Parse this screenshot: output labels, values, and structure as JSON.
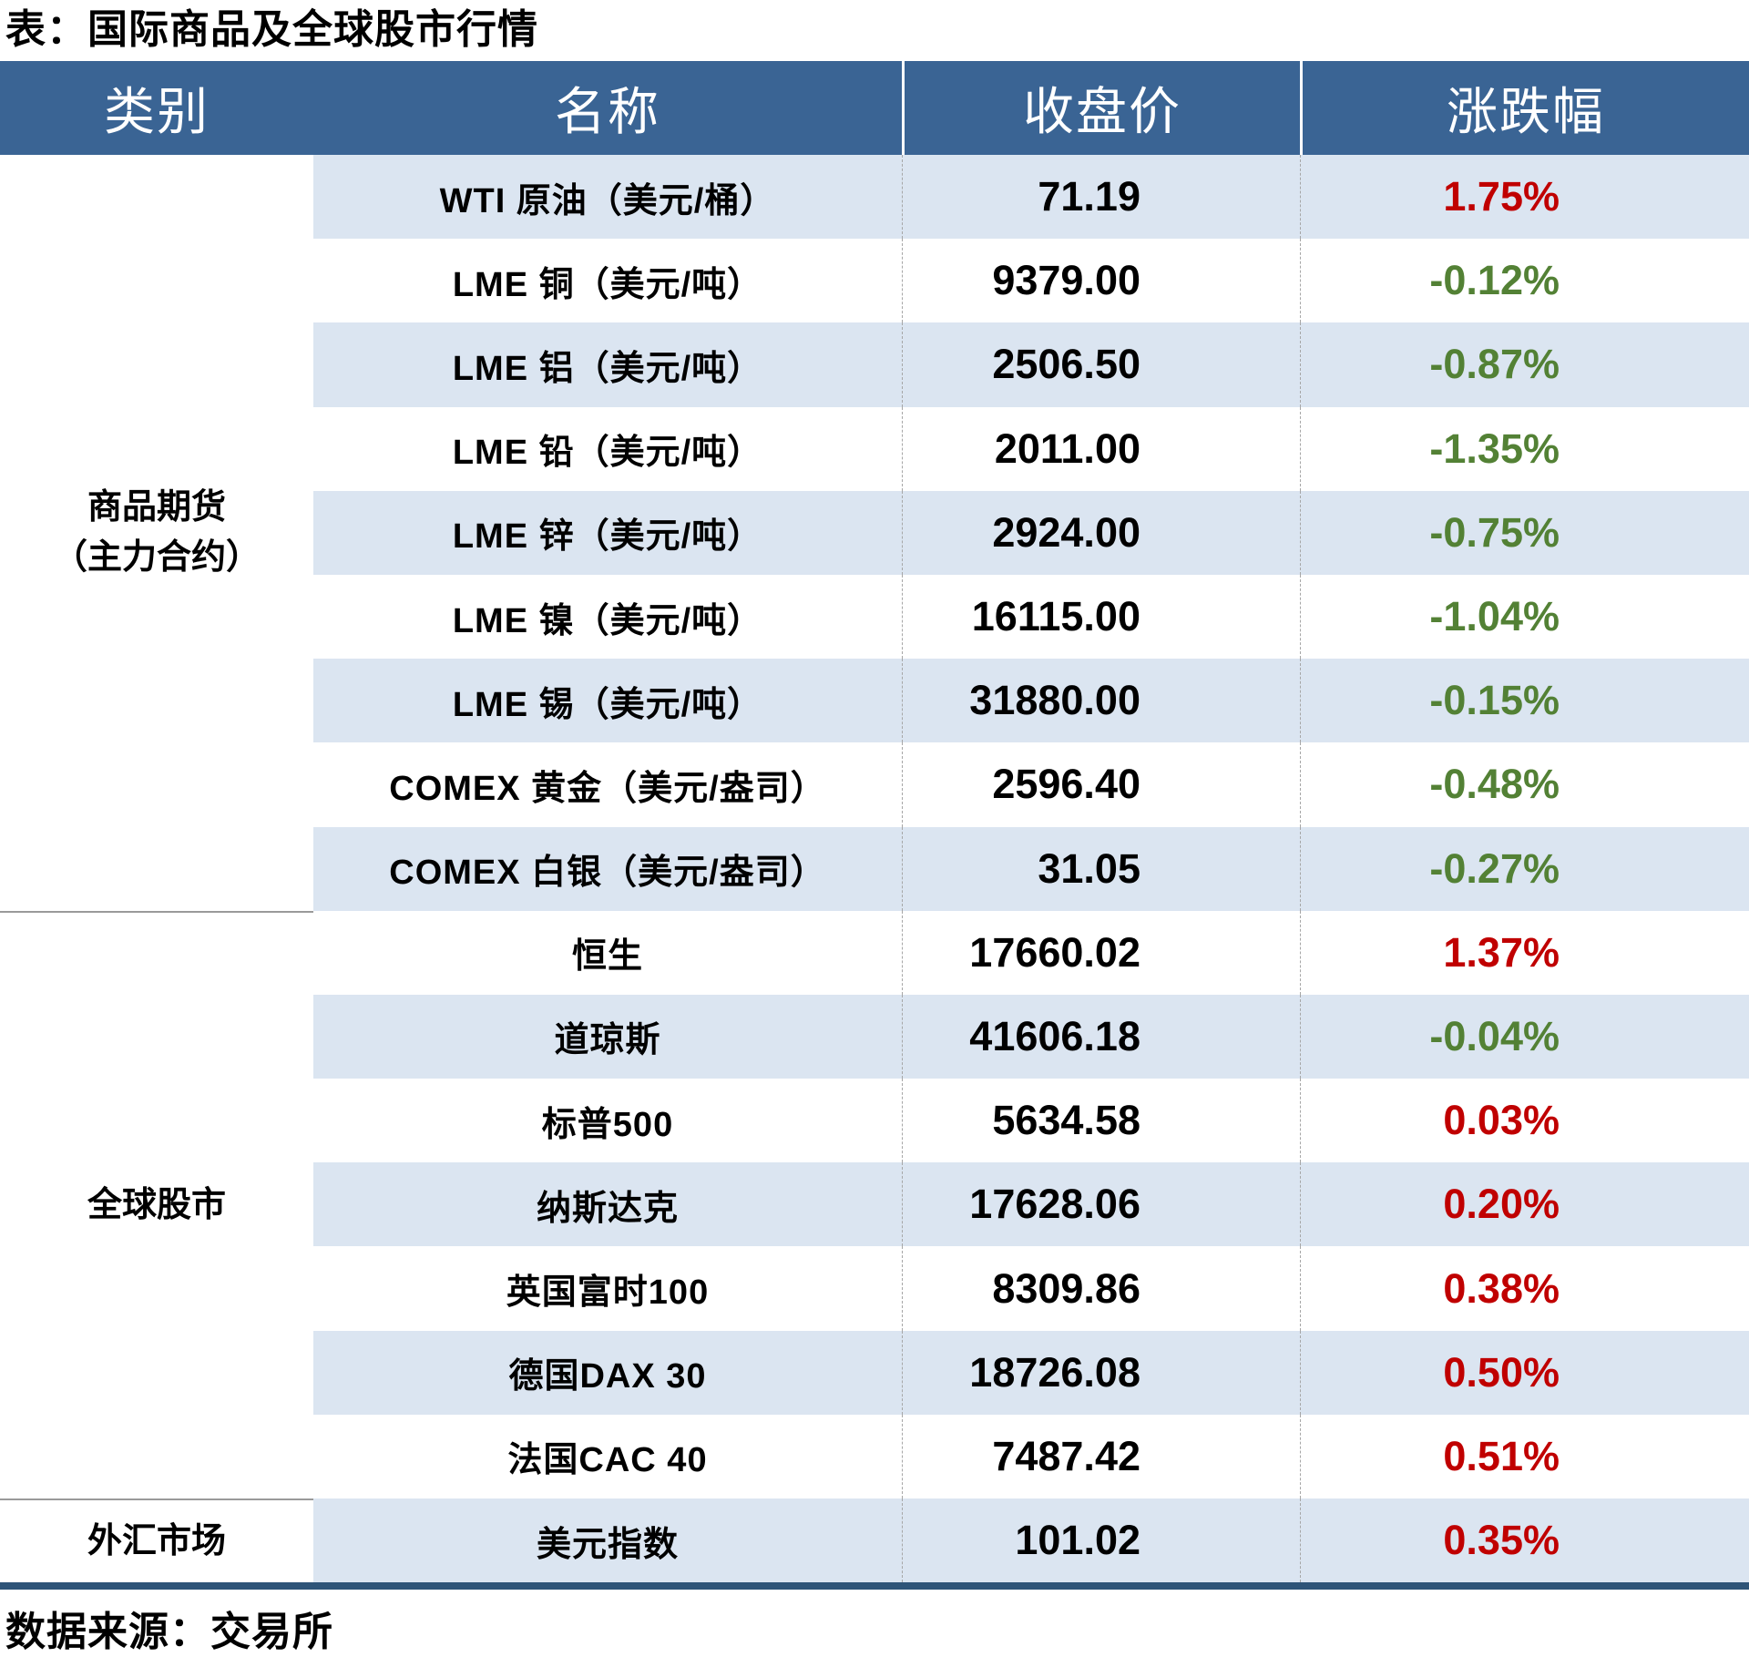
{
  "title": "表：国际商品及全球股市行情",
  "footer": {
    "source": "数据来源：交易所"
  },
  "colors": {
    "header_bg": "#3A6494",
    "band_bg": "#DBE5F1",
    "up_red": "#C00000",
    "down_green": "#538135",
    "bottom_rule": "#2E5478"
  },
  "table": {
    "headers": [
      "类别",
      "名称",
      "收盘价",
      "涨跌幅"
    ],
    "categories": [
      {
        "label_line1": "商品期货",
        "label_line2": "（主力合约）",
        "row_span": 9
      },
      {
        "label_line1": "全球股市",
        "label_line2": "",
        "row_span": 7
      },
      {
        "label_line1": "外汇市场",
        "label_line2": "",
        "row_span": 1
      }
    ],
    "rows": [
      {
        "name": "WTI 原油（美元/桶）",
        "price": "71.19",
        "change": "1.75%",
        "dir": "up"
      },
      {
        "name": "LME 铜（美元/吨）",
        "price": "9379.00",
        "change": "-0.12%",
        "dir": "down"
      },
      {
        "name": "LME 铝（美元/吨）",
        "price": "2506.50",
        "change": "-0.87%",
        "dir": "down"
      },
      {
        "name": "LME 铅（美元/吨）",
        "price": "2011.00",
        "change": "-1.35%",
        "dir": "down"
      },
      {
        "name": "LME 锌（美元/吨）",
        "price": "2924.00",
        "change": "-0.75%",
        "dir": "down"
      },
      {
        "name": "LME 镍（美元/吨）",
        "price": "16115.00",
        "change": "-1.04%",
        "dir": "down"
      },
      {
        "name": "LME 锡（美元/吨）",
        "price": "31880.00",
        "change": "-0.15%",
        "dir": "down"
      },
      {
        "name": "COMEX 黄金（美元/盎司）",
        "price": "2596.40",
        "change": "-0.48%",
        "dir": "down"
      },
      {
        "name": "COMEX 白银（美元/盎司）",
        "price": "31.05",
        "change": "-0.27%",
        "dir": "down"
      },
      {
        "name": "恒生",
        "price": "17660.02",
        "change": "1.37%",
        "dir": "up"
      },
      {
        "name": "道琼斯",
        "price": "41606.18",
        "change": "-0.04%",
        "dir": "down"
      },
      {
        "name": "标普500",
        "price": "5634.58",
        "change": "0.03%",
        "dir": "up"
      },
      {
        "name": "纳斯达克",
        "price": "17628.06",
        "change": "0.20%",
        "dir": "up"
      },
      {
        "name": "英国富时100",
        "price": "8309.86",
        "change": "0.38%",
        "dir": "up"
      },
      {
        "name": "德国DAX 30",
        "price": "18726.08",
        "change": "0.50%",
        "dir": "up"
      },
      {
        "name": "法国CAC 40",
        "price": "7487.42",
        "change": "0.51%",
        "dir": "up"
      },
      {
        "name": "美元指数",
        "price": "101.02",
        "change": "0.35%",
        "dir": "up"
      }
    ]
  }
}
